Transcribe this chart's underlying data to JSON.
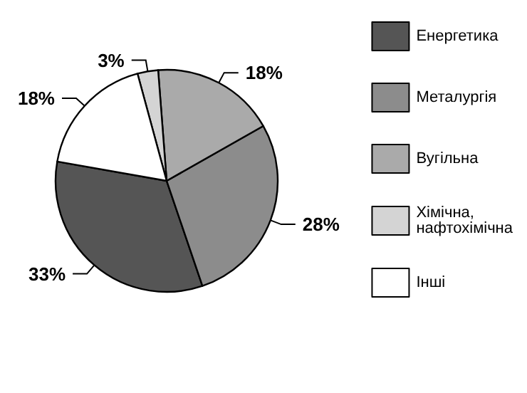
{
  "chart_data": {
    "type": "pie",
    "categories": [
      "Енергетика",
      "Металургія",
      "Вугільна",
      "Хімічна, нафтохімічна",
      "Інші"
    ],
    "values": [
      33,
      28,
      18,
      3,
      18
    ],
    "colors": [
      "#555555",
      "#8c8c8c",
      "#aaaaaa",
      "#d4d4d4",
      "#ffffff"
    ],
    "value_labels": [
      "33%",
      "28%",
      "18%",
      "3%",
      "18%"
    ],
    "legend": "right"
  }
}
